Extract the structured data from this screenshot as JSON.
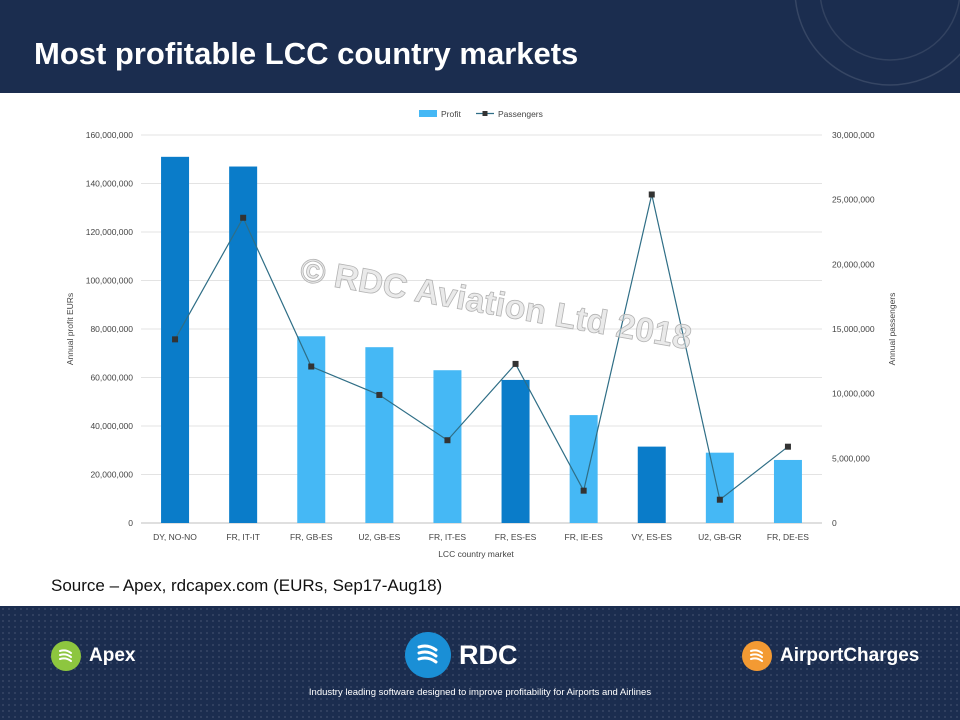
{
  "slide": {
    "title": "Most profitable LCC country markets",
    "source": "Source – Apex, rdcapex.com (EURs, Sep17-Aug18)",
    "watermark": "© RDC Aviation Ltd 2018"
  },
  "footer": {
    "apex_label": "Apex",
    "rdc_label": "RDC",
    "airportcharges_label": "AirportCharges",
    "tagline": "Industry leading software designed to improve profitability for Airports and Airlines",
    "colors": {
      "background": "#1b2d4f",
      "apex": "#8dc63f",
      "rdc": "#1a8fd6",
      "airportcharges": "#f39a33"
    }
  },
  "chart_data": {
    "type": "bar",
    "categories": [
      "DY, NO-NO",
      "FR, IT-IT",
      "FR, GB-ES",
      "U2, GB-ES",
      "FR, IT-ES",
      "FR, ES-ES",
      "FR, IE-ES",
      "VY, ES-ES",
      "U2, GB-GR",
      "FR, DE-ES"
    ],
    "series": [
      {
        "name": "Profit",
        "kind": "bar",
        "axis": "left",
        "values": [
          151000000,
          147000000,
          77000000,
          72500000,
          63000000,
          59000000,
          44500000,
          31500000,
          29000000,
          26000000
        ],
        "highlight": [
          true,
          true,
          false,
          false,
          false,
          true,
          false,
          true,
          false,
          false
        ]
      },
      {
        "name": "Passengers",
        "kind": "line",
        "axis": "right",
        "values": [
          14200000,
          23600000,
          12100000,
          9900000,
          6400000,
          12300000,
          2500000,
          25400000,
          1800000,
          5900000
        ]
      }
    ],
    "xlabel": "LCC country market",
    "ylabel": "Annual profit EURs",
    "y2label": "Annual passengers",
    "ylim": [
      0,
      160000000
    ],
    "y2lim": [
      0,
      30000000
    ],
    "yticks": [
      "0",
      "20,000,000",
      "40,000,000",
      "60,000,000",
      "80,000,000",
      "100,000,000",
      "120,000,000",
      "140,000,000",
      "160,000,000"
    ],
    "y2ticks": [
      "0",
      "5,000,000",
      "10,000,000",
      "15,000,000",
      "20,000,000",
      "25,000,000",
      "30,000,000"
    ],
    "legend_position": "top",
    "grid": true,
    "colors": {
      "bar_highlight": "#0a7cc9",
      "bar_light": "#45b8f5",
      "line": "#2f6e86",
      "marker": "#333333"
    }
  }
}
